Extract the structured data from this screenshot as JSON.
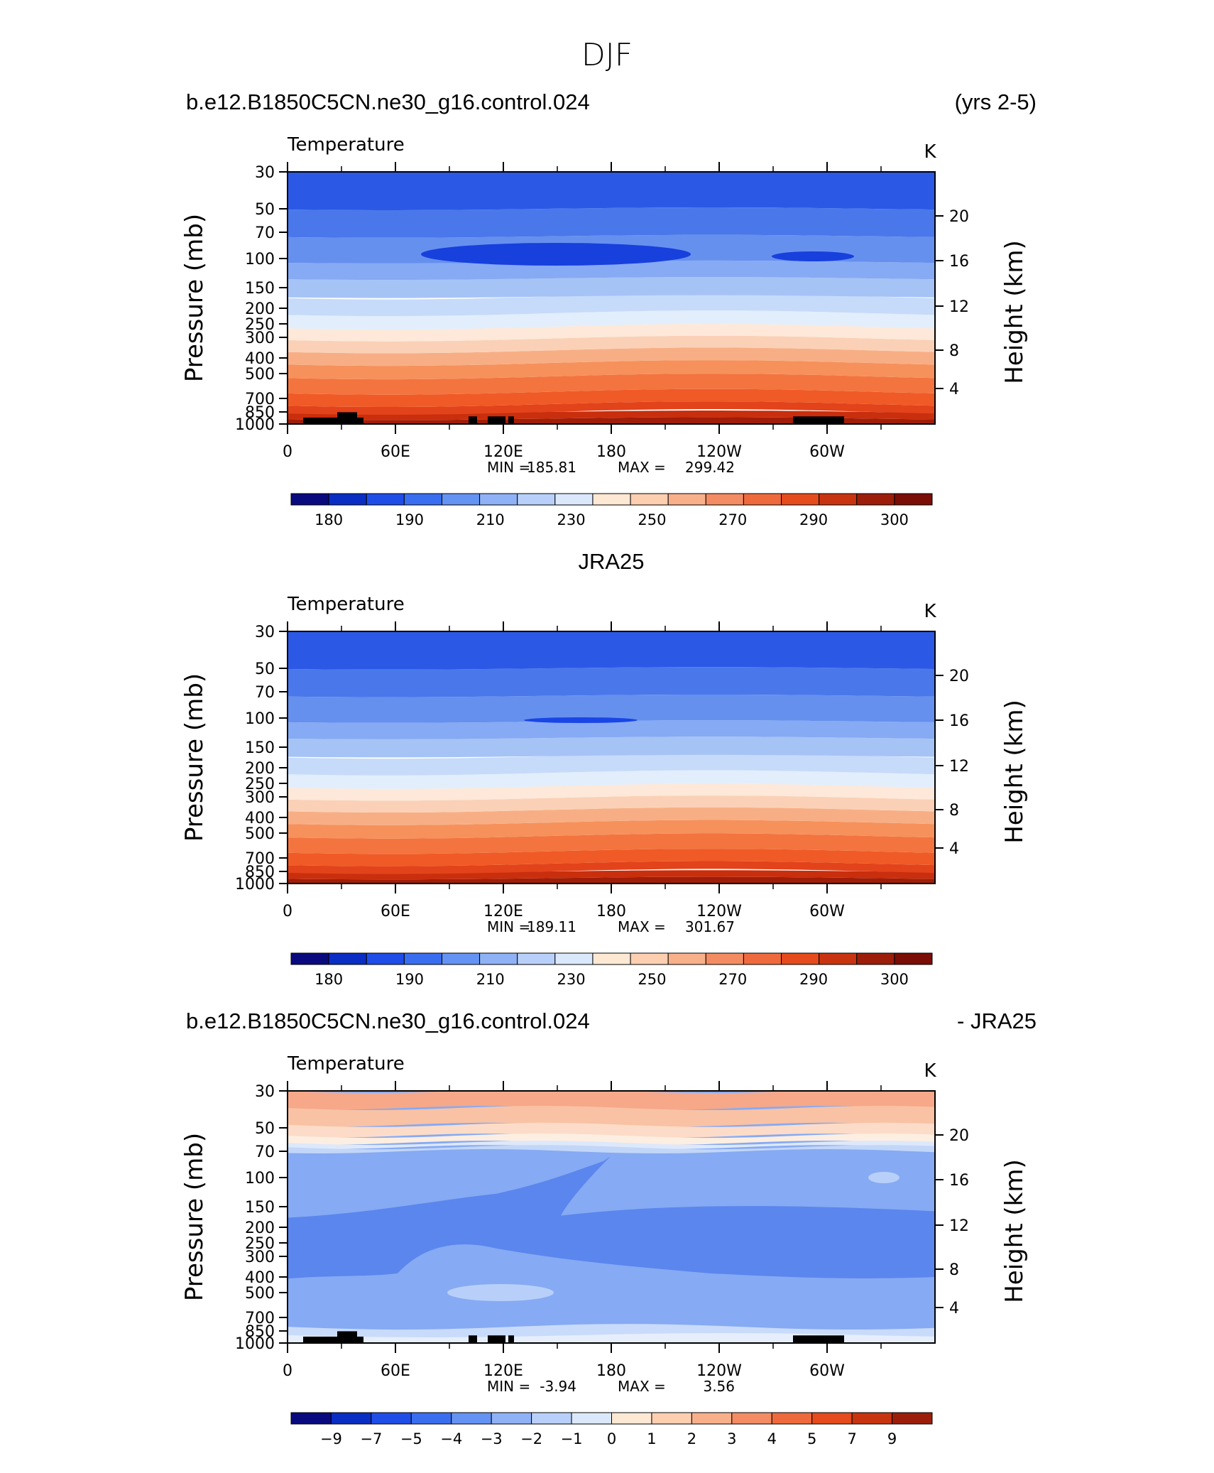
{
  "figure_title": "DJF",
  "chart_data": [
    {
      "type": "contour",
      "panel_id": "model",
      "header_left": "b.e12.B1850C5CN.ne30_g16.control.024",
      "header_center": "",
      "header_right": "(yrs 2-5)",
      "title": "Temperature",
      "units": "K",
      "ylabel": "Pressure (mb)",
      "ylabel_right": "Height (km)",
      "x_ticks": [
        "0",
        "60E",
        "120E",
        "180",
        "120W",
        "60W"
      ],
      "x_tick_values": [
        0,
        60,
        120,
        180,
        240,
        300
      ],
      "xlim": [
        0,
        360
      ],
      "pressure_ticks": [
        "30",
        "50",
        "70",
        "100",
        "150",
        "200",
        "250",
        "300",
        "400",
        "500",
        "700",
        "850",
        "1000"
      ],
      "pressure_values": [
        30,
        50,
        70,
        100,
        150,
        200,
        250,
        300,
        400,
        500,
        700,
        850,
        1000
      ],
      "ylim": [
        30,
        1000
      ],
      "height_ticks": [
        "20",
        "16",
        "12",
        "8",
        "4"
      ],
      "height_values": [
        20,
        16,
        12,
        8,
        4
      ],
      "min_label": "MIN",
      "min_value": "185.81",
      "max_label": "MAX",
      "max_value": "299.42",
      "colorbar_labels": [
        "180",
        "190",
        "210",
        "230",
        "250",
        "270",
        "290",
        "300"
      ],
      "colorbar_colors": [
        "#0a0a7f",
        "#0a2ec4",
        "#1f4de8",
        "#3a6ef0",
        "#6493f3",
        "#8fb2f6",
        "#b8d0f9",
        "#dbe8fc",
        "#fde8d4",
        "#fbcfb0",
        "#f8b08a",
        "#f38c62",
        "#ee6a3d",
        "#e54b1c",
        "#c93410",
        "#9c1e0a",
        "#7a0d05"
      ],
      "band_colors_surface_up": [
        "#a01e08",
        "#c92e0d",
        "#e2431b",
        "#f05a26",
        "#f3743f",
        "#f6915c",
        "#f8ae85",
        "#fad1b6",
        "#fde8d9",
        "#e2eefc",
        "#c6dbfa",
        "#a6c3f6",
        "#86aaf3",
        "#6690ee",
        "#4a78ea",
        "#2b59e6"
      ]
    },
    {
      "type": "contour",
      "panel_id": "obs",
      "header_left": "",
      "header_center": "JRA25",
      "header_right": "",
      "title": "Temperature",
      "units": "K",
      "ylabel": "Pressure (mb)",
      "ylabel_right": "Height (km)",
      "x_ticks": [
        "0",
        "60E",
        "120E",
        "180",
        "120W",
        "60W"
      ],
      "x_tick_values": [
        0,
        60,
        120,
        180,
        240,
        300
      ],
      "xlim": [
        0,
        360
      ],
      "pressure_ticks": [
        "30",
        "50",
        "70",
        "100",
        "150",
        "200",
        "250",
        "300",
        "400",
        "500",
        "700",
        "850",
        "1000"
      ],
      "pressure_values": [
        30,
        50,
        70,
        100,
        150,
        200,
        250,
        300,
        400,
        500,
        700,
        850,
        1000
      ],
      "ylim": [
        30,
        1000
      ],
      "height_ticks": [
        "20",
        "16",
        "12",
        "8",
        "4"
      ],
      "height_values": [
        20,
        16,
        12,
        8,
        4
      ],
      "min_label": "MIN",
      "min_value": "189.11",
      "max_label": "MAX",
      "max_value": "301.67",
      "colorbar_labels": [
        "180",
        "190",
        "210",
        "230",
        "250",
        "270",
        "290",
        "300"
      ],
      "colorbar_colors": [
        "#0a0a7f",
        "#0a2ec4",
        "#1f4de8",
        "#3a6ef0",
        "#6493f3",
        "#8fb2f6",
        "#b8d0f9",
        "#dbe8fc",
        "#fde8d4",
        "#fbcfb0",
        "#f8b08a",
        "#f38c62",
        "#ee6a3d",
        "#e54b1c",
        "#c93410",
        "#9c1e0a",
        "#7a0d05"
      ],
      "band_colors_surface_up": [
        "#a01e08",
        "#c92e0d",
        "#e2431b",
        "#f05a26",
        "#f3743f",
        "#f6915c",
        "#f8ae85",
        "#fad1b6",
        "#fde8d9",
        "#e2eefc",
        "#c6dbfa",
        "#a6c3f6",
        "#86aaf3",
        "#6690ee",
        "#4a78ea",
        "#2b59e6"
      ]
    },
    {
      "type": "contour",
      "panel_id": "diff",
      "header_left": "b.e12.B1850C5CN.ne30_g16.control.024",
      "header_center": "",
      "header_right": "- JRA25",
      "title": "Temperature",
      "units": "K",
      "ylabel": "Pressure (mb)",
      "ylabel_right": "Height (km)",
      "x_ticks": [
        "0",
        "60E",
        "120E",
        "180",
        "120W",
        "60W"
      ],
      "x_tick_values": [
        0,
        60,
        120,
        180,
        240,
        300
      ],
      "xlim": [
        0,
        360
      ],
      "pressure_ticks": [
        "30",
        "50",
        "70",
        "100",
        "150",
        "200",
        "250",
        "300",
        "400",
        "500",
        "700",
        "850",
        "1000"
      ],
      "pressure_values": [
        30,
        50,
        70,
        100,
        150,
        200,
        250,
        300,
        400,
        500,
        700,
        850,
        1000
      ],
      "ylim": [
        30,
        1000
      ],
      "height_ticks": [
        "20",
        "16",
        "12",
        "8",
        "4"
      ],
      "height_values": [
        20,
        16,
        12,
        8,
        4
      ],
      "min_label": "MIN",
      "min_value": "-3.94",
      "max_label": "MAX",
      "max_value": "3.56",
      "colorbar_labels": [
        "-9",
        "-7",
        "-5",
        "-4",
        "-3",
        "-2",
        "-1",
        "0",
        "1",
        "2",
        "3",
        "4",
        "5",
        "7",
        "9"
      ],
      "colorbar_colors": [
        "#0a0a7f",
        "#0a2ec4",
        "#1f4de8",
        "#3a6ef0",
        "#6493f3",
        "#8fb2f6",
        "#b8d0f9",
        "#dbe8fc",
        "#fde8d4",
        "#fbcfb0",
        "#f8b08a",
        "#f38c62",
        "#ee6a3d",
        "#e54b1c",
        "#c93410",
        "#9c1e0a"
      ]
    }
  ]
}
